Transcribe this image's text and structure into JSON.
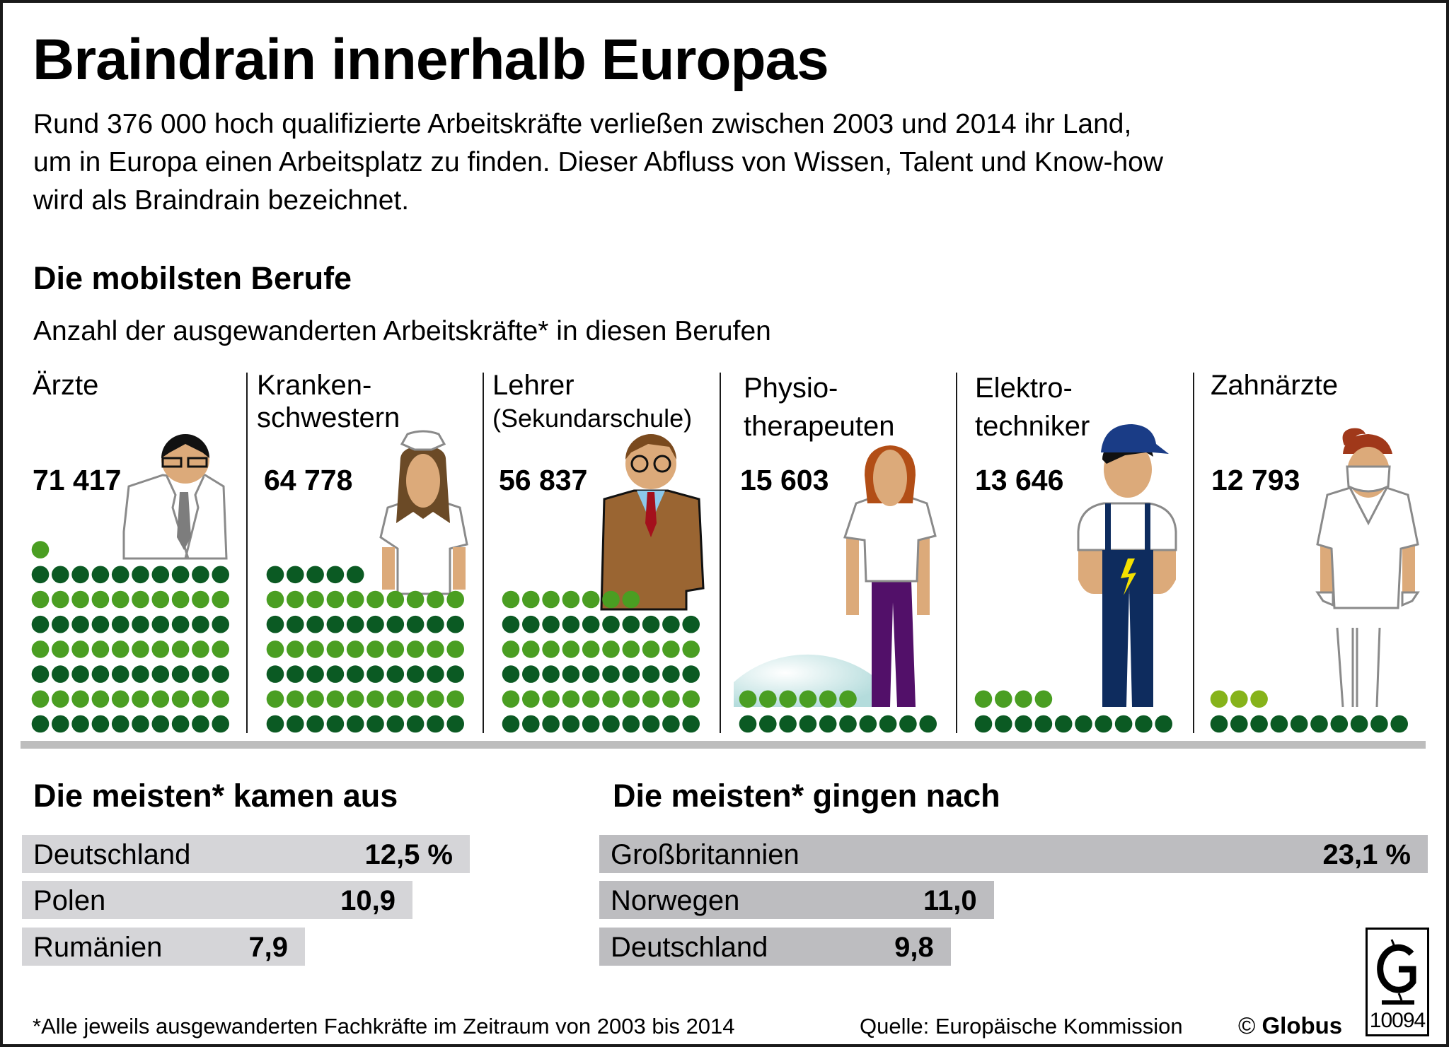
{
  "title": "Braindrain innerhalb Europas",
  "intro": [
    "Rund 376 000 hoch qualifizierte Arbeitskräfte verließen zwischen 2003 und 2014 ihr Land,",
    "um in Europa einen Arbeitsplatz zu finden. Dieser Abfluss von Wissen, Talent und Know-how",
    "wird als Braindrain bezeichnet."
  ],
  "professions_section": {
    "heading": "Die mobilsten Berufe",
    "subheading": "Anzahl der ausgewanderten Arbeitskräfte* in diesen Berufen"
  },
  "origin_section": {
    "heading": "Die meisten* kamen aus"
  },
  "destination_section": {
    "heading": "Die meisten* gingen nach"
  },
  "footer": {
    "footnote": "*Alle jeweils ausgewanderten Fachkräfte im Zeitraum von 2003 bis 2014",
    "source": "Quelle: Europäische Kommission",
    "copyright_symbol": "©",
    "publisher": "Globus",
    "graphic_number": "10094"
  },
  "colors": {
    "dot_dark": "#0b5a23",
    "dot_light": "#4a9e22",
    "dot_lime": "#86b31a",
    "bar_origin": "#d5d5d8",
    "bar_destination": "#bdbdc0",
    "separator": "#bdbdbd"
  },
  "chart_data": [
    {
      "type": "pictogram",
      "title": "Die mobilsten Berufe",
      "subtitle": "Anzahl der ausgewanderten Arbeitskräfte* in diesen Berufen",
      "unit_per_dot": 1000,
      "categories": [
        {
          "label_lines": [
            "Ärzte"
          ],
          "value": 71417,
          "value_label": "71 417",
          "dots": 71,
          "figure": "doctor"
        },
        {
          "label_lines": [
            "Kranken-",
            "schwestern"
          ],
          "value": 64778,
          "value_label": "64 778",
          "dots": 65,
          "figure": "nurse"
        },
        {
          "label_lines": [
            "Lehrer",
            "(Sekundarschule)"
          ],
          "value": 56837,
          "value_label": "56 837",
          "dots": 57,
          "figure": "teacher"
        },
        {
          "label_lines": [
            "Physio-",
            "therapeuten"
          ],
          "value": 15603,
          "value_label": "15 603",
          "dots": 16,
          "figure": "physiotherapist"
        },
        {
          "label_lines": [
            "Elektro-",
            "techniker"
          ],
          "value": 13646,
          "value_label": "13 646",
          "dots": 14,
          "figure": "electrician"
        },
        {
          "label_lines": [
            "Zahnärzte"
          ],
          "value": 12793,
          "value_label": "12 793",
          "dots": 13,
          "figure": "dentist"
        }
      ]
    },
    {
      "type": "bar",
      "orientation": "horizontal",
      "title": "Die meisten* kamen aus",
      "unit": "%",
      "categories": [
        "Deutschland",
        "Polen",
        "Rumänien"
      ],
      "values": [
        12.5,
        10.9,
        7.9
      ],
      "value_labels": [
        "12,5 %",
        "10,9",
        "7,9"
      ]
    },
    {
      "type": "bar",
      "orientation": "horizontal",
      "title": "Die meisten* gingen nach",
      "unit": "%",
      "categories": [
        "Großbritannien",
        "Norwegen",
        "Deutschland"
      ],
      "values": [
        23.1,
        11.0,
        9.8
      ],
      "value_labels": [
        "23,1 %",
        "11,0",
        "9,8"
      ]
    }
  ]
}
